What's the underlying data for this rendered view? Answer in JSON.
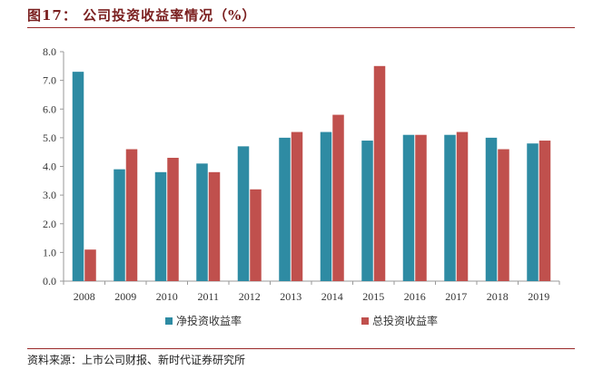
{
  "header": {
    "title": "图17：   公司投资收益率情况（%）"
  },
  "footer": {
    "source": "资料来源：上市公司财报、新时代证券研究所"
  },
  "colors": {
    "net": "#2e8ba3",
    "total": "#c0504d",
    "rule": "#9a2a2a",
    "axis": "#999999"
  },
  "chart_data": {
    "type": "bar",
    "categories": [
      "2008",
      "2009",
      "2010",
      "2011",
      "2012",
      "2013",
      "2014",
      "2015",
      "2016",
      "2017",
      "2018",
      "2019"
    ],
    "series": [
      {
        "name": "净投资收益率",
        "values": [
          7.3,
          3.9,
          3.8,
          4.1,
          4.7,
          5.0,
          5.2,
          4.9,
          5.1,
          5.1,
          5.0,
          4.8
        ]
      },
      {
        "name": "总投资收益率",
        "values": [
          1.1,
          4.6,
          4.3,
          3.8,
          3.2,
          5.2,
          5.8,
          7.5,
          5.1,
          5.2,
          4.6,
          4.9
        ]
      }
    ],
    "ylim": [
      0,
      8
    ],
    "yticks": [
      "0.0",
      "1.0",
      "2.0",
      "3.0",
      "4.0",
      "5.0",
      "6.0",
      "7.0",
      "8.0"
    ],
    "grid": false,
    "legend": "bottom"
  }
}
